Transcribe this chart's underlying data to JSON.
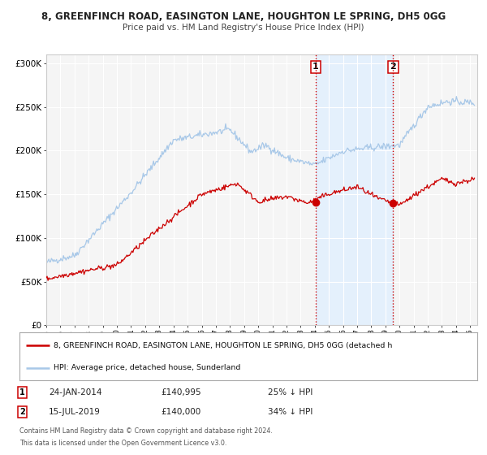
{
  "title_line1": "8, GREENFINCH ROAD, EASINGTON LANE, HOUGHTON LE SPRING, DH5 0GG",
  "title_line2": "Price paid vs. HM Land Registry's House Price Index (HPI)",
  "ylim": [
    0,
    310000
  ],
  "yticks": [
    0,
    50000,
    100000,
    150000,
    200000,
    250000,
    300000
  ],
  "ytick_labels": [
    "£0",
    "£50K",
    "£100K",
    "£150K",
    "£200K",
    "£250K",
    "£300K"
  ],
  "background_color": "#ffffff",
  "plot_bg_color": "#f5f5f5",
  "grid_color": "#ffffff",
  "hpi_color": "#a8c8e8",
  "price_color": "#cc0000",
  "marker1_date": 2014.07,
  "marker1_price": 140995,
  "marker1_label": "24-JAN-2014",
  "marker1_amount": "£140,995",
  "marker1_hpi": "25% ↓ HPI",
  "marker2_date": 2019.54,
  "marker2_price": 140000,
  "marker2_label": "15-JUL-2019",
  "marker2_amount": "£140,000",
  "marker2_hpi": "34% ↓ HPI",
  "legend_label1": "8, GREENFINCH ROAD, EASINGTON LANE, HOUGHTON LE SPRING, DH5 0GG (detached h",
  "legend_label2": "HPI: Average price, detached house, Sunderland",
  "footnote1": "Contains HM Land Registry data © Crown copyright and database right 2024.",
  "footnote2": "This data is licensed under the Open Government Licence v3.0.",
  "xmin": 1995,
  "xmax": 2025.5,
  "shade_color": "#ddeeff"
}
